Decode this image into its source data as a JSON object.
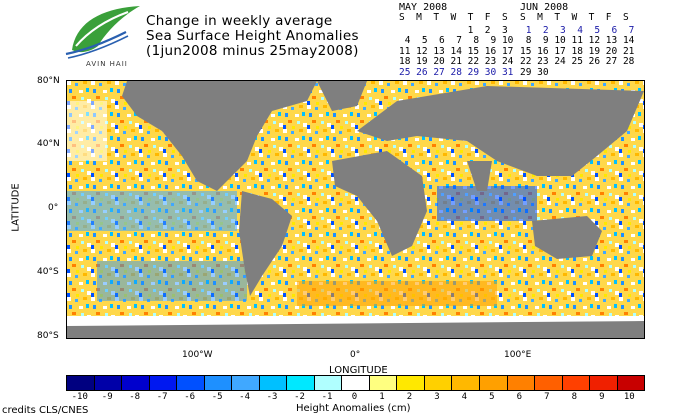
{
  "logo": {
    "text": "AVIN HAII"
  },
  "title": {
    "line1": "Change in weekly average",
    "line2": "Sea Surface Height Anomalies",
    "line3": "(1jun2008 minus 25may2008)"
  },
  "calendars": [
    {
      "month": "MAY 2008",
      "days_header": "S  M  T  W  T  F  S",
      "weeks": [
        "            1  2  3",
        " 4  5  6  7  8  9 10",
        "11 12 13 14 15 16 17",
        "18 19 20 21 22 23 24",
        "25 26 27 28 29 30 31"
      ],
      "highlight_week": 4
    },
    {
      "month": "JUN 2008",
      "days_header": "S  M  T  W  T  F  S",
      "weeks": [
        " 1  2  3  4  5  6  7",
        " 8  9 10 11 12 13 14",
        "15 16 17 18 19 20 21",
        "22 23 24 25 26 27 28",
        "29 30"
      ],
      "highlight_week": 0
    }
  ],
  "map": {
    "y_axis_label": "LATITUDE",
    "x_axis_label": "LONGITUDE",
    "lat_ticks": [
      "80°N",
      "40°N",
      "0°",
      "40°S",
      "80°S"
    ],
    "lon_ticks": [
      "100°W",
      "0°",
      "100°E"
    ]
  },
  "colorbar": {
    "title": "Height Anomalies (cm)",
    "labels": [
      "-10",
      "-9",
      "-8",
      "-7",
      "-6",
      "-5",
      "-4",
      "-3",
      "-2",
      "-1",
      "0",
      "1",
      "2",
      "3",
      "4",
      "5",
      "6",
      "7",
      "8",
      "9",
      "10"
    ],
    "colors": [
      "#000080",
      "#0000a8",
      "#0000cd",
      "#0018f0",
      "#0050ff",
      "#1e90ff",
      "#40a8ff",
      "#00c0ff",
      "#00e8ff",
      "#b0ffff",
      "#ffffff",
      "#ffff80",
      "#ffe800",
      "#ffd000",
      "#ffb800",
      "#ffa000",
      "#ff8000",
      "#ff6000",
      "#ff4000",
      "#f02000",
      "#c80000"
    ]
  },
  "credits": "credits CLS/CNES"
}
